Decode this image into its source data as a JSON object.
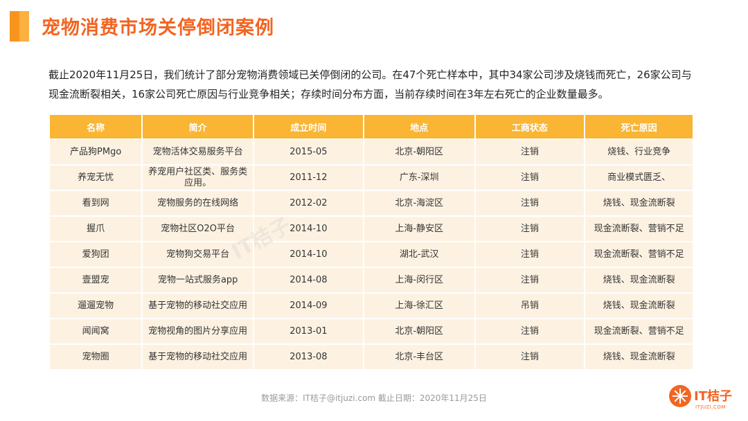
{
  "header": {
    "title": "宠物消费市场关停倒闭案例"
  },
  "summary": "截止2020年11月25日，我们统计了部分宠物消费领域已关停倒闭的公司。在47个死亡样本中，其中34家公司涉及烧钱而死亡，26家公司与现金流断裂相关，16家公司死亡原因与行业竞争相关；存续时间分布方面，当前存续时间在3年左右死亡的企业数量最多。",
  "table": {
    "headers": [
      "名称",
      "简介",
      "成立时间",
      "地点",
      "工商状态",
      "死亡原因"
    ],
    "rows": [
      [
        "产品狗PMgo",
        "宠物活体交易服务平台",
        "2015-05",
        "北京-朝阳区",
        "注销",
        "烧钱、行业竞争"
      ],
      [
        "养宠无忧",
        "养宠用户社区类、服务类应用。",
        "2011-12",
        "广东-深圳",
        "注销",
        "商业模式匮乏、"
      ],
      [
        "看到网",
        "宠物服务的在线网络",
        "2012-02",
        "北京-海淀区",
        "注销",
        "烧钱、现金流断裂"
      ],
      [
        "握爪",
        "宠物社区O2O平台",
        "2014-10",
        "上海-静安区",
        "注销",
        "现金流断裂、营销不足"
      ],
      [
        "爱狗团",
        "宠物狗交易平台",
        "2014-10",
        "湖北-武汉",
        "注销",
        "现金流断裂、营销不足"
      ],
      [
        "壹盟宠",
        "宠物一站式服务app",
        "2014-08",
        "上海-闵行区",
        "注销",
        "烧钱、现金流断裂"
      ],
      [
        "遛遛宠物",
        "基于宠物的移动社交应用",
        "2014-09",
        "上海-徐汇区",
        "吊销",
        "烧钱、现金流断裂"
      ],
      [
        "闻闻窝",
        "宠物视角的图片分享应用",
        "2013-01",
        "北京-朝阳区",
        "注销",
        "现金流断裂、营销不足"
      ],
      [
        "宠物圈",
        "基于宠物的移动社交应用",
        "2013-08",
        "北京-丰台区",
        "注销",
        "烧钱、现金流断裂"
      ]
    ]
  },
  "watermark": "IT桔子",
  "footer": "数据来源：IT桔子@itjuzi.com  截止日期：2020年11月25日",
  "logo": {
    "name": "IT桔子",
    "url": "ITJUZI.COM"
  },
  "colors": {
    "accent": "#F26522",
    "header_bg": "#F9B533",
    "row_bg": "#FDF2E2"
  }
}
